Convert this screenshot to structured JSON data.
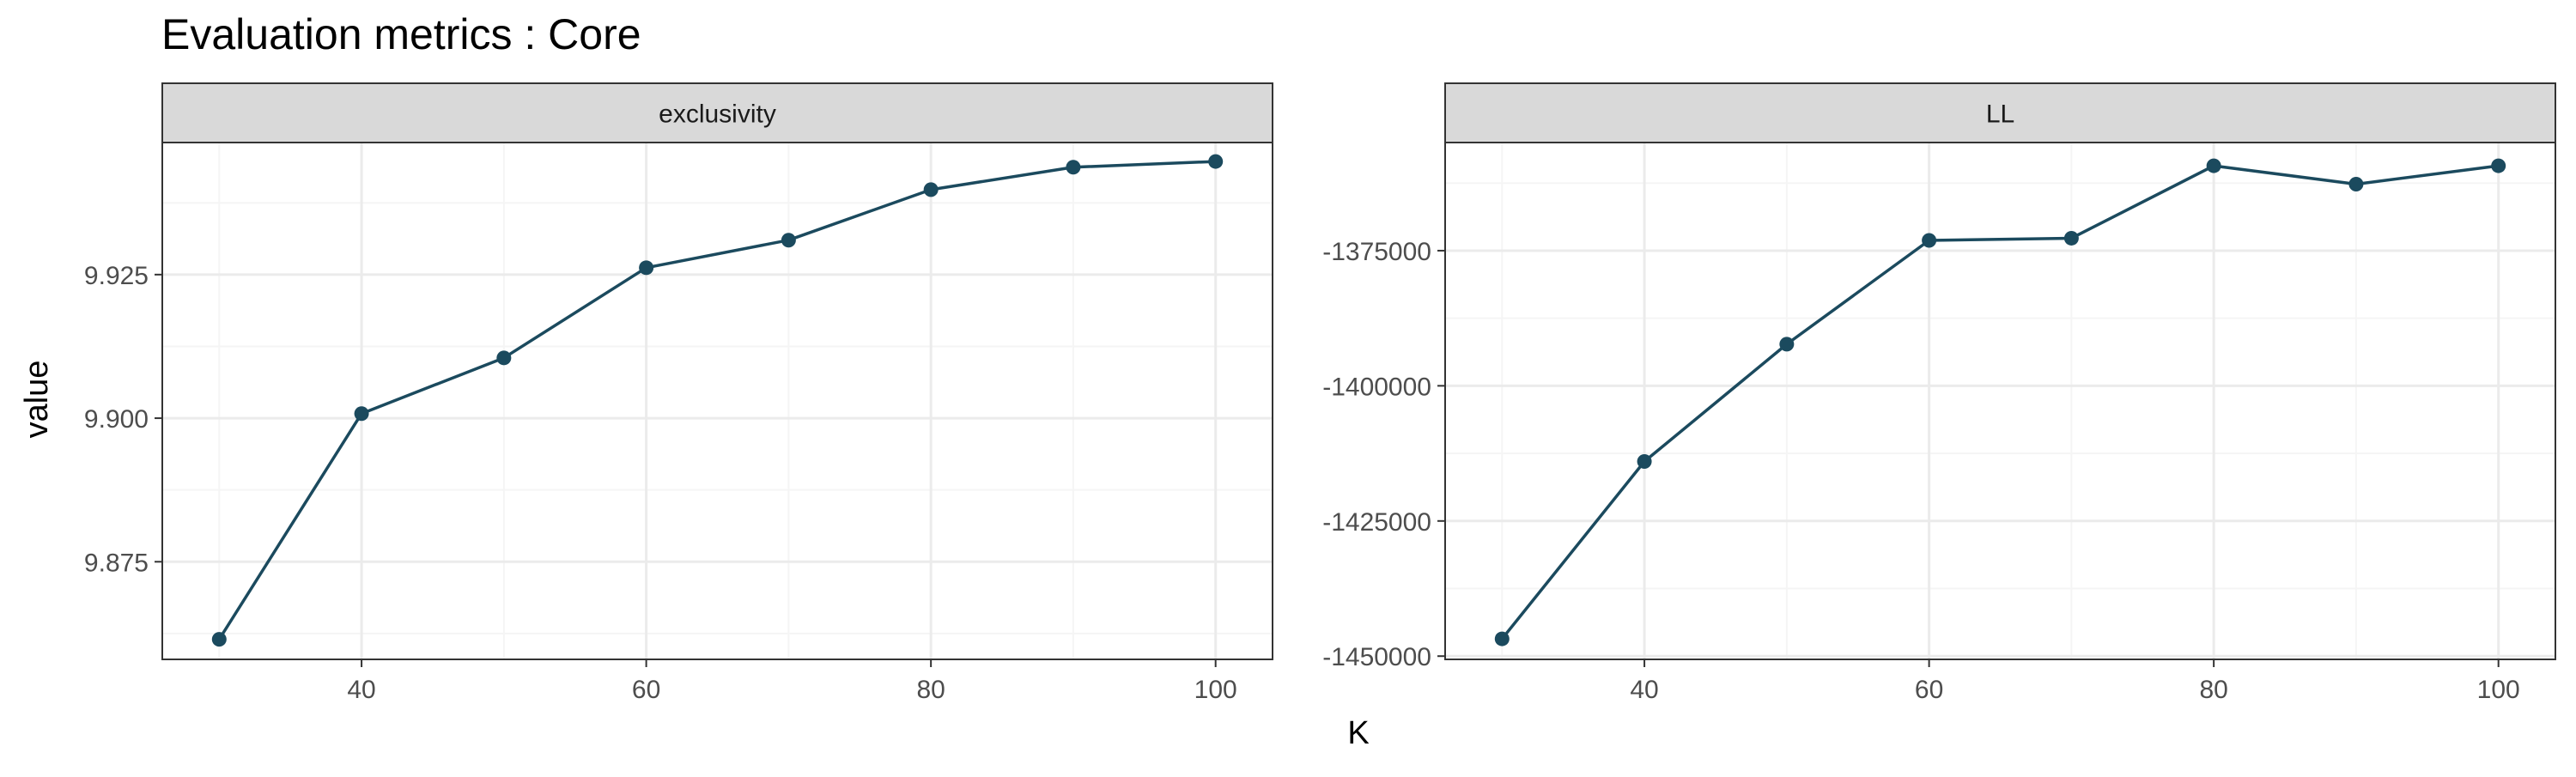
{
  "title": "Evaluation metrics : Core",
  "ylabel": "value",
  "xlabel": "K",
  "colors": {
    "series": "#1b4a5e",
    "strip_fill": "#d9d9d9",
    "grid_major": "#ebebeb",
    "grid_minor": "#f5f5f5",
    "panel_border": "#333333",
    "tick_text": "#4d4d4d",
    "text": "#000000"
  },
  "chart_data": [
    {
      "type": "line",
      "panel": "exclusivity",
      "x": [
        30,
        40,
        50,
        60,
        70,
        80,
        90,
        100
      ],
      "y": [
        9.8615,
        9.9008,
        9.9105,
        9.9262,
        9.931,
        9.9398,
        9.9437,
        9.9447
      ],
      "xlim": [
        26,
        104
      ],
      "ylim": [
        9.858,
        9.948
      ],
      "xticks": [
        40,
        60,
        80,
        100
      ],
      "xtick_labels": [
        "40",
        "60",
        "80",
        "100"
      ],
      "yticks": [
        9.875,
        9.9,
        9.925
      ],
      "ytick_labels": [
        "9.875",
        "9.900",
        "9.925"
      ],
      "grid": true,
      "markers": true
    },
    {
      "type": "line",
      "panel": "LL",
      "x": [
        30,
        40,
        50,
        60,
        70,
        80,
        90,
        100
      ],
      "y": [
        -1446800,
        -1414000,
        -1392300,
        -1373100,
        -1372700,
        -1359300,
        -1362700,
        -1359300
      ],
      "xlim": [
        26,
        104
      ],
      "ylim": [
        -1450600,
        -1355000
      ],
      "xticks": [
        40,
        60,
        80,
        100
      ],
      "xtick_labels": [
        "40",
        "60",
        "80",
        "100"
      ],
      "yticks": [
        -1450000,
        -1425000,
        -1400000,
        -1375000
      ],
      "ytick_labels": [
        "-1450000",
        "-1425000",
        "-1400000",
        "-1375000"
      ],
      "grid": true,
      "markers": true
    }
  ]
}
